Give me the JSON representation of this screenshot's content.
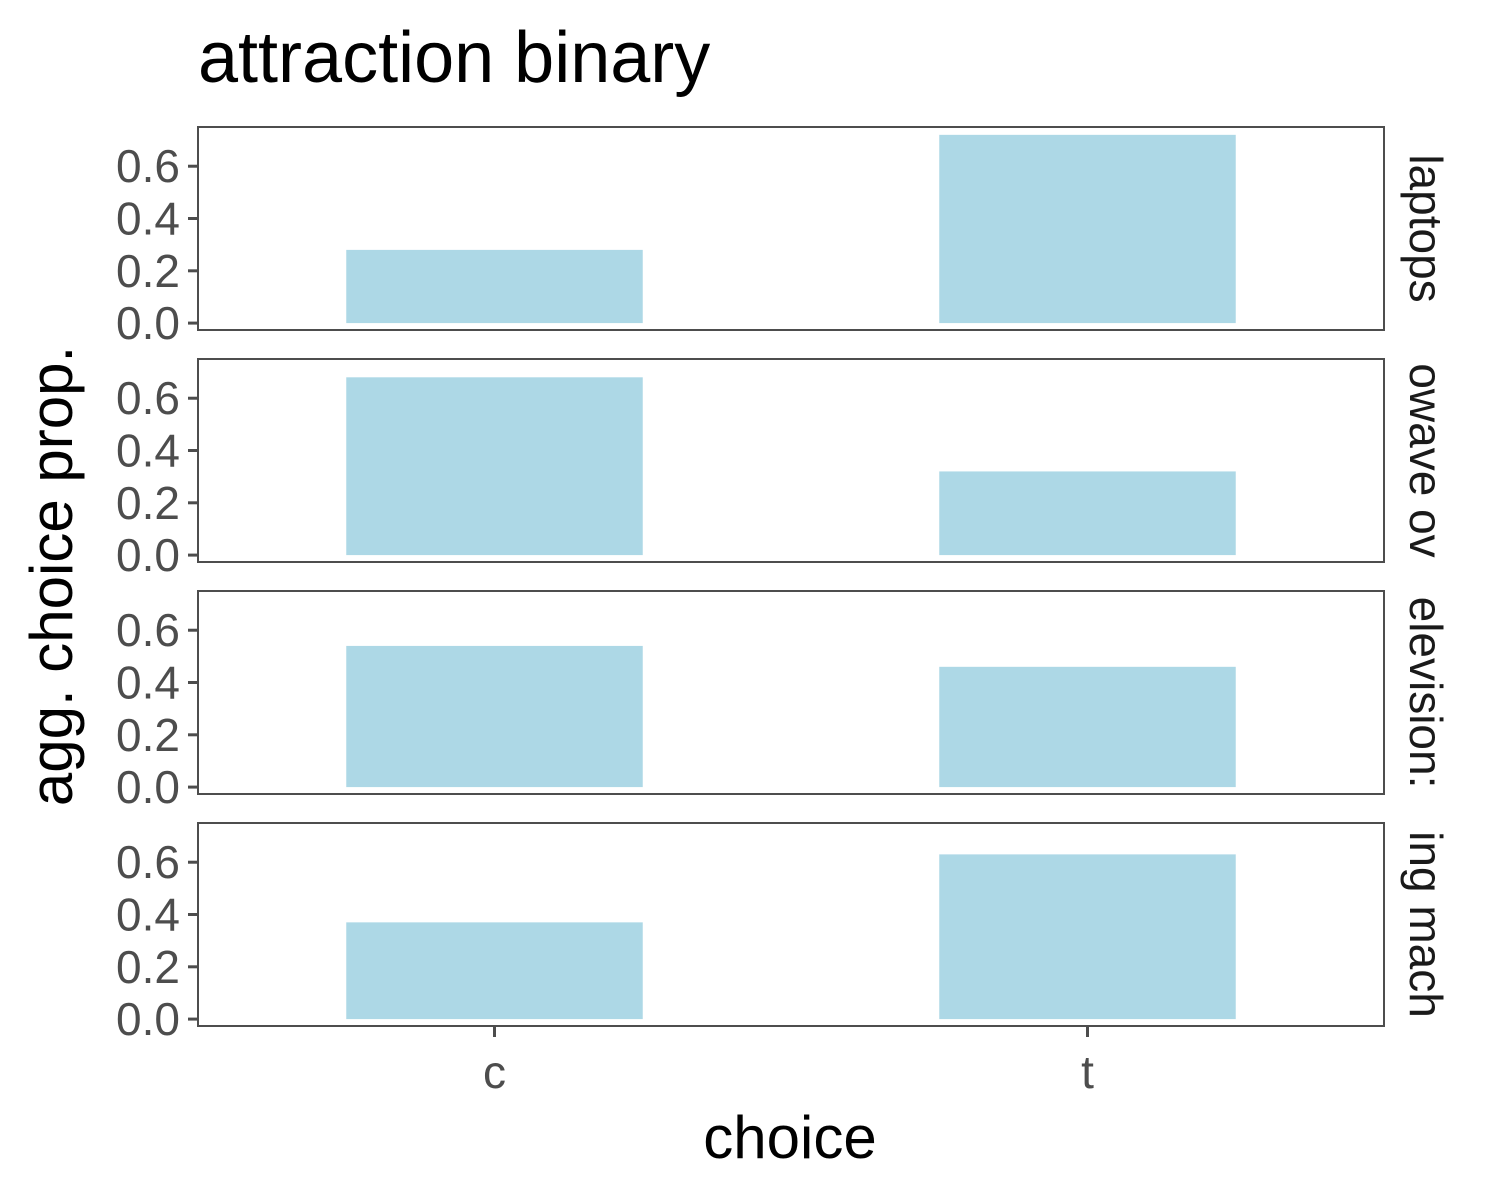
{
  "chart_data": {
    "type": "bar",
    "title": "attraction binary",
    "xlabel": "choice",
    "ylabel": "agg. choice prop.",
    "categories": [
      "c",
      "t"
    ],
    "ylim": [
      0,
      0.75
    ],
    "yticks": [
      0.0,
      0.2,
      0.4,
      0.6
    ],
    "ytick_labels": [
      "0.0",
      "0.2",
      "0.4",
      "0.6"
    ],
    "bar_color": "#add8e6",
    "grid": false,
    "facets": [
      {
        "strip_label": "laptops",
        "values": [
          0.28,
          0.72
        ]
      },
      {
        "strip_label": "owave ov",
        "values": [
          0.68,
          0.32
        ]
      },
      {
        "strip_label": "elevision:",
        "values": [
          0.54,
          0.46
        ]
      },
      {
        "strip_label": "ing mach",
        "values": [
          0.37,
          0.63
        ]
      }
    ]
  }
}
